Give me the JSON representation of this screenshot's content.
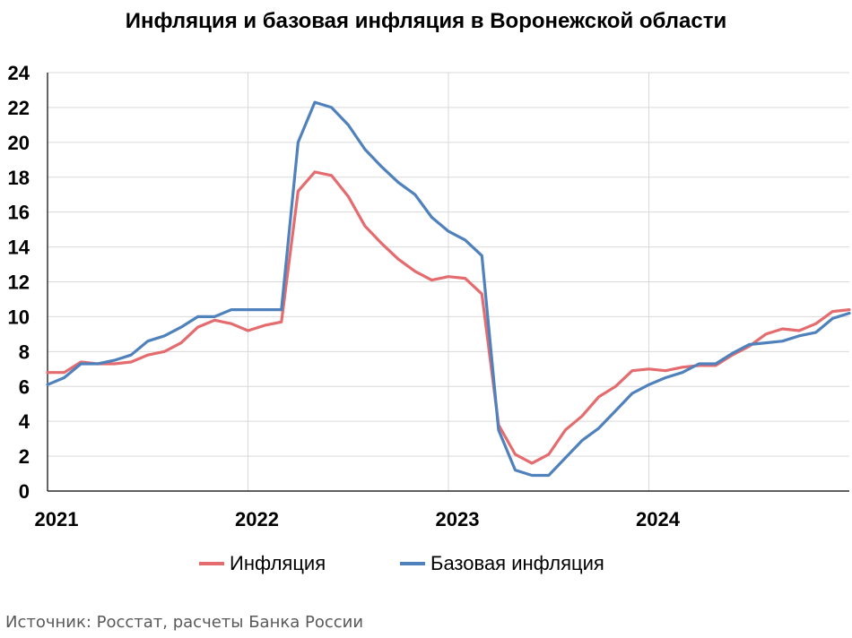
{
  "chart_data": {
    "type": "line",
    "title": "Инфляция и базовая инфляция в Воронежской области",
    "xlabel": "",
    "ylabel": "",
    "ylim": [
      0,
      24
    ],
    "yticks": [
      "0",
      "2",
      "4",
      "6",
      "8",
      "10",
      "12",
      "14",
      "16",
      "18",
      "20",
      "22",
      "24"
    ],
    "year_labels": [
      "2021",
      "2022",
      "2023",
      "2024"
    ],
    "grid": true,
    "legend_placement": "bottom",
    "months": 48,
    "series": [
      {
        "name": "Инфляция",
        "color": "#E46C6F",
        "values": [
          6.8,
          6.8,
          7.4,
          7.3,
          7.3,
          7.4,
          7.8,
          8.0,
          8.5,
          9.4,
          9.8,
          9.6,
          9.2,
          9.5,
          9.7,
          17.2,
          18.3,
          18.1,
          16.9,
          15.2,
          14.2,
          13.3,
          12.6,
          12.1,
          12.3,
          12.2,
          11.3,
          3.8,
          2.1,
          1.6,
          2.1,
          3.5,
          4.3,
          5.4,
          6.0,
          6.9,
          7.0,
          6.9,
          7.1,
          7.2,
          7.2,
          7.8,
          8.3,
          9.0,
          9.3,
          9.2,
          9.6,
          10.3,
          10.4
        ]
      },
      {
        "name": "Базовая инфляция",
        "color": "#4F81BD",
        "values": [
          6.1,
          6.5,
          7.3,
          7.3,
          7.5,
          7.8,
          8.6,
          8.9,
          9.4,
          10.0,
          10.0,
          10.4,
          10.4,
          10.4,
          10.4,
          20.0,
          22.3,
          22.0,
          21.0,
          19.6,
          18.6,
          17.7,
          17.0,
          15.7,
          14.9,
          14.4,
          13.5,
          3.5,
          1.2,
          0.9,
          0.9,
          1.9,
          2.9,
          3.6,
          4.6,
          5.6,
          6.1,
          6.5,
          6.8,
          7.3,
          7.3,
          7.9,
          8.4,
          8.5,
          8.6,
          8.9,
          9.1,
          9.9,
          10.2
        ]
      }
    ]
  },
  "source": "Источник: Росстат, расчеты Банка России"
}
